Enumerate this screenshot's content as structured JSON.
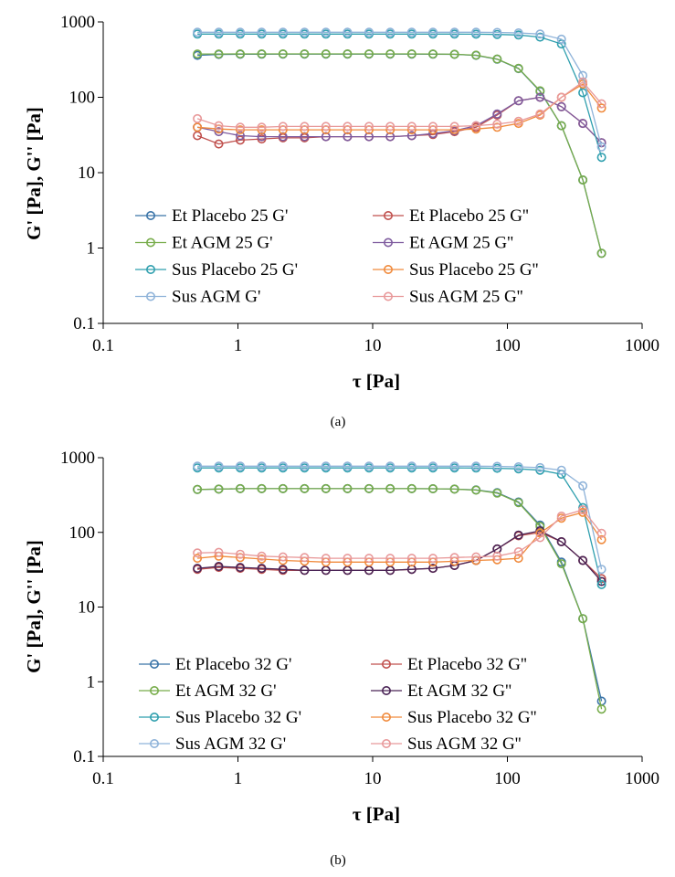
{
  "chart_data": [
    {
      "type": "line",
      "panel": "(a)",
      "xscale": "log",
      "yscale": "log",
      "xlabel": "τ [Pa]",
      "ylabel": "G' [Pa], G'' [Pa]",
      "xlim": [
        0.1,
        1000
      ],
      "ylim": [
        0.1,
        1000
      ],
      "xticks": [
        "0.1",
        "1",
        "10",
        "100",
        "1000"
      ],
      "yticks": [
        "0.1",
        "1",
        "10",
        "100",
        "1000"
      ],
      "grid": false,
      "legend_position": "bottom-center",
      "x": [
        0.5,
        0.72,
        1.04,
        1.5,
        2.16,
        3.12,
        4.5,
        6.5,
        9.4,
        13.5,
        19.5,
        28,
        40.5,
        58.5,
        84,
        121,
        175,
        252,
        363,
        500
      ],
      "series": [
        {
          "name": "Et Placebo 25 G'",
          "color": "#3a74a8",
          "values": [
            360,
            370,
            372,
            373,
            374,
            374,
            374,
            374,
            374,
            374,
            374,
            373,
            371,
            360,
            320,
            240,
            120,
            42,
            8,
            0.85
          ]
        },
        {
          "name": "Et Placebo 25 G''",
          "color": "#c0504d",
          "values": [
            31,
            24,
            27,
            28,
            29,
            29,
            30,
            30,
            30,
            30,
            31,
            32,
            35,
            40,
            58,
            90,
            100,
            75,
            45,
            25
          ]
        },
        {
          "name": "Et AGM 25 G'",
          "color": "#77ac4a",
          "values": [
            375,
            375,
            376,
            376,
            376,
            376,
            376,
            376,
            376,
            376,
            376,
            375,
            372,
            362,
            322,
            242,
            122,
            42,
            8,
            0.85
          ]
        },
        {
          "name": "Et AGM 25 G''",
          "color": "#7e5b9e",
          "values": [
            40,
            35,
            31,
            30,
            30,
            30,
            30,
            30,
            30,
            30,
            31,
            33,
            36,
            42,
            60,
            90,
            100,
            75,
            45,
            25
          ]
        },
        {
          "name": "Sus Placebo 25 G'",
          "color": "#2f9fae",
          "values": [
            690,
            690,
            690,
            690,
            690,
            690,
            690,
            690,
            690,
            690,
            690,
            690,
            690,
            688,
            683,
            670,
            630,
            510,
            115,
            16
          ]
        },
        {
          "name": "Sus Placebo 25 G''",
          "color": "#f08a3c",
          "values": [
            40,
            38,
            37,
            37,
            37,
            37,
            37,
            37,
            37,
            37,
            37,
            37,
            37,
            38,
            40,
            45,
            58,
            100,
            150,
            72
          ]
        },
        {
          "name": "Sus AGM G'",
          "color": "#8fb3d9",
          "values": [
            730,
            730,
            730,
            730,
            730,
            730,
            730,
            730,
            730,
            730,
            730,
            730,
            730,
            730,
            725,
            715,
            690,
            590,
            195,
            22
          ]
        },
        {
          "name": "Sus AGM 25 G''",
          "color": "#e8999a",
          "values": [
            52,
            42,
            40,
            40,
            41,
            41,
            41,
            41,
            41,
            41,
            41,
            41,
            41,
            42,
            44,
            48,
            60,
            100,
            160,
            82
          ]
        }
      ],
      "caption": "(a)"
    },
    {
      "type": "line",
      "panel": "(b)",
      "xscale": "log",
      "yscale": "log",
      "xlabel": "τ [Pa]",
      "ylabel": "G' [Pa], G'' [Pa]",
      "xlim": [
        0.1,
        1000
      ],
      "ylim": [
        0.1,
        1000
      ],
      "xticks": [
        "0.1",
        "1",
        "10",
        "100",
        "1000"
      ],
      "yticks": [
        "0.1",
        "1",
        "10",
        "100",
        "1000"
      ],
      "grid": false,
      "legend_position": "bottom-center",
      "x": [
        0.5,
        0.72,
        1.04,
        1.5,
        2.16,
        3.12,
        4.5,
        6.5,
        9.4,
        13.5,
        19.5,
        28,
        40.5,
        58.5,
        84,
        121,
        175,
        252,
        363,
        500
      ],
      "series": [
        {
          "name": "Et Placebo 32 G'",
          "color": "#3a74a8",
          "values": [
            375,
            380,
            385,
            385,
            385,
            385,
            385,
            385,
            385,
            385,
            385,
            384,
            380,
            370,
            340,
            255,
            125,
            40,
            7,
            0.55
          ]
        },
        {
          "name": "Et Placebo 32 G''",
          "color": "#c0504d",
          "values": [
            32,
            34,
            33,
            32,
            31,
            31,
            31,
            31,
            31,
            31,
            32,
            33,
            36,
            42,
            60,
            90,
            100,
            75,
            42,
            24
          ]
        },
        {
          "name": "Et AGM 32 G'",
          "color": "#77ac4a",
          "values": [
            375,
            380,
            385,
            385,
            385,
            385,
            385,
            385,
            385,
            385,
            385,
            384,
            380,
            368,
            335,
            250,
            120,
            38,
            7,
            0.43
          ]
        },
        {
          "name": "Et AGM 32 G''",
          "color": "#4a2456",
          "values": [
            33,
            35,
            34,
            33,
            32,
            31,
            31,
            31,
            31,
            31,
            32,
            33,
            36,
            42,
            60,
            92,
            105,
            75,
            42,
            22
          ]
        },
        {
          "name": "Sus Placebo 32 G'",
          "color": "#2f9fae",
          "values": [
            730,
            730,
            730,
            730,
            730,
            730,
            730,
            730,
            730,
            730,
            730,
            730,
            730,
            728,
            722,
            710,
            680,
            600,
            215,
            20
          ]
        },
        {
          "name": "Sus Placebo 32 G''",
          "color": "#f08a3c",
          "values": [
            45,
            48,
            46,
            44,
            42,
            41,
            40,
            40,
            40,
            40,
            40,
            40,
            41,
            42,
            43,
            45,
            98,
            155,
            185,
            80
          ]
        },
        {
          "name": "Sus AGM 32 G'",
          "color": "#8fb3d9",
          "values": [
            770,
            770,
            770,
            770,
            770,
            770,
            770,
            770,
            770,
            770,
            770,
            770,
            770,
            770,
            765,
            755,
            735,
            680,
            420,
            32
          ]
        },
        {
          "name": "Sus AGM 32 G''",
          "color": "#e8999a",
          "values": [
            53,
            54,
            51,
            48,
            47,
            46,
            45,
            45,
            45,
            45,
            45,
            45,
            46,
            47,
            48,
            55,
            85,
            165,
            200,
            97
          ]
        }
      ],
      "caption": "(b)"
    }
  ]
}
